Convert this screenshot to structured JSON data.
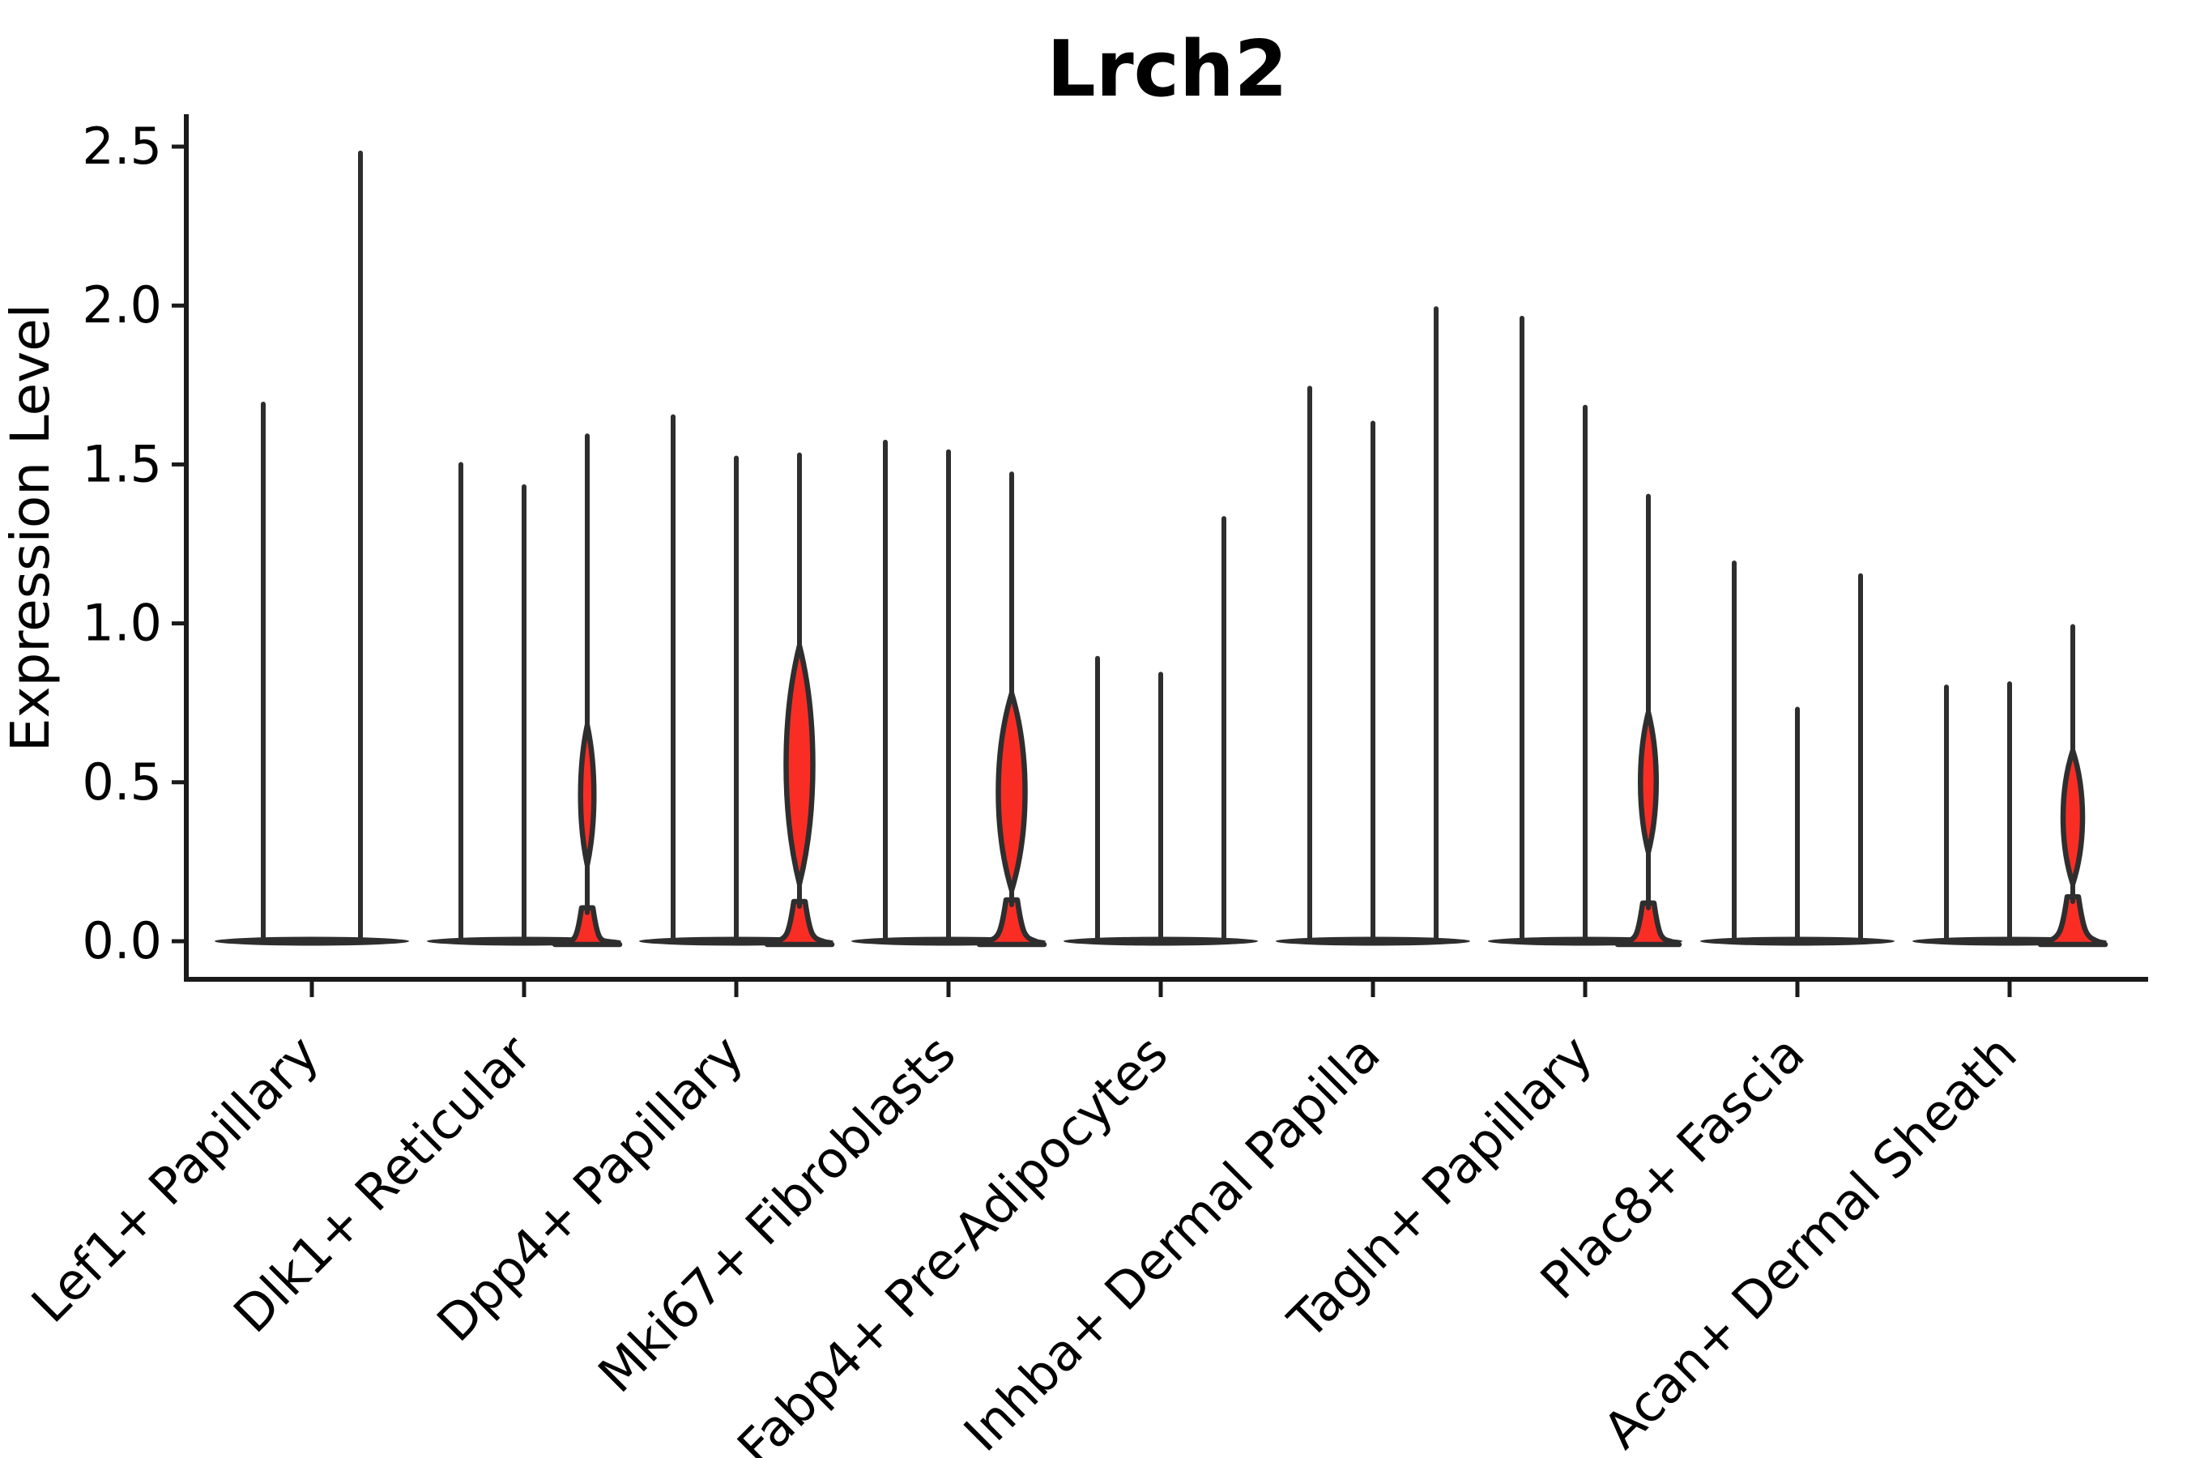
{
  "chart_data": {
    "type": "violin",
    "title": "Lrch2",
    "xlabel": "",
    "ylabel": "Expression Level",
    "yticks": [
      "0.0",
      "0.5",
      "1.0",
      "1.5",
      "2.0",
      "2.5"
    ],
    "ylim": [
      -0.12,
      2.6
    ],
    "grid": false,
    "legend": "none",
    "categories": [
      "Lef1+ Papillary",
      "Dlk1+ Reticular",
      "Dpp4+ Papillary",
      "Mki67+ Fibroblasts",
      "Fabp4+ Pre-Adipocytes",
      "Inhba+ Dermal Papilla",
      "Tagln+ Papillary",
      "Plac8+ Fascia",
      "Acan+ Dermal Sheath"
    ],
    "groups": [
      {
        "category": "Lef1+ Papillary",
        "violins": [
          {
            "max": 1.69,
            "fill": "white"
          },
          {
            "max": 2.48,
            "fill": "white"
          }
        ]
      },
      {
        "category": "Dlk1+ Reticular",
        "violins": [
          {
            "max": 1.5,
            "fill": "white"
          },
          {
            "max": 1.43,
            "fill": "white"
          },
          {
            "max": 1.59,
            "fill": "red",
            "bulge": {
              "lo": 0.24,
              "hi": 0.68,
              "half": 11
            },
            "base": {
              "half": 40,
              "h": 0.105
            }
          }
        ]
      },
      {
        "category": "Dpp4+ Papillary",
        "violins": [
          {
            "max": 1.65,
            "fill": "white"
          },
          {
            "max": 1.52,
            "fill": "white"
          },
          {
            "max": 1.53,
            "fill": "red",
            "bulge": {
              "lo": 0.18,
              "hi": 0.93,
              "half": 22
            },
            "base": {
              "half": 40,
              "h": 0.125
            }
          }
        ]
      },
      {
        "category": "Mki67+ Fibroblasts",
        "violins": [
          {
            "max": 1.57,
            "fill": "white"
          },
          {
            "max": 1.54,
            "fill": "white"
          },
          {
            "max": 1.47,
            "fill": "red",
            "bulge": {
              "lo": 0.16,
              "hi": 0.78,
              "half": 22
            },
            "base": {
              "half": 40,
              "h": 0.13
            }
          }
        ]
      },
      {
        "category": "Fabp4+ Pre-Adipocytes",
        "violins": [
          {
            "max": 0.89,
            "fill": "white"
          },
          {
            "max": 0.84,
            "fill": "white"
          },
          {
            "max": 1.33,
            "fill": "white"
          }
        ]
      },
      {
        "category": "Inhba+ Dermal Papilla",
        "violins": [
          {
            "max": 1.74,
            "fill": "white"
          },
          {
            "max": 1.63,
            "fill": "white"
          },
          {
            "max": 1.99,
            "fill": "white"
          }
        ]
      },
      {
        "category": "Tagln+ Papillary",
        "violins": [
          {
            "max": 1.96,
            "fill": "white"
          },
          {
            "max": 1.68,
            "fill": "white"
          },
          {
            "max": 1.4,
            "fill": "red",
            "bulge": {
              "lo": 0.28,
              "hi": 0.72,
              "half": 13
            },
            "base": {
              "half": 38,
              "h": 0.12
            }
          }
        ]
      },
      {
        "category": "Plac8+ Fascia",
        "violins": [
          {
            "max": 1.19,
            "fill": "white"
          },
          {
            "max": 0.73,
            "fill": "white"
          },
          {
            "max": 1.15,
            "fill": "white"
          }
        ]
      },
      {
        "category": "Acan+ Dermal Sheath",
        "violins": [
          {
            "max": 0.8,
            "fill": "white"
          },
          {
            "max": 0.81,
            "fill": "white"
          },
          {
            "max": 0.99,
            "fill": "red",
            "bulge": {
              "lo": 0.18,
              "hi": 0.6,
              "half": 16
            },
            "base": {
              "half": 40,
              "h": 0.14
            }
          }
        ]
      }
    ],
    "colors": {
      "highlight_fill": "#fa2d25",
      "violin_stroke": "#2e2e2e",
      "axis": "#1a1a1a",
      "text": "#000000"
    }
  }
}
